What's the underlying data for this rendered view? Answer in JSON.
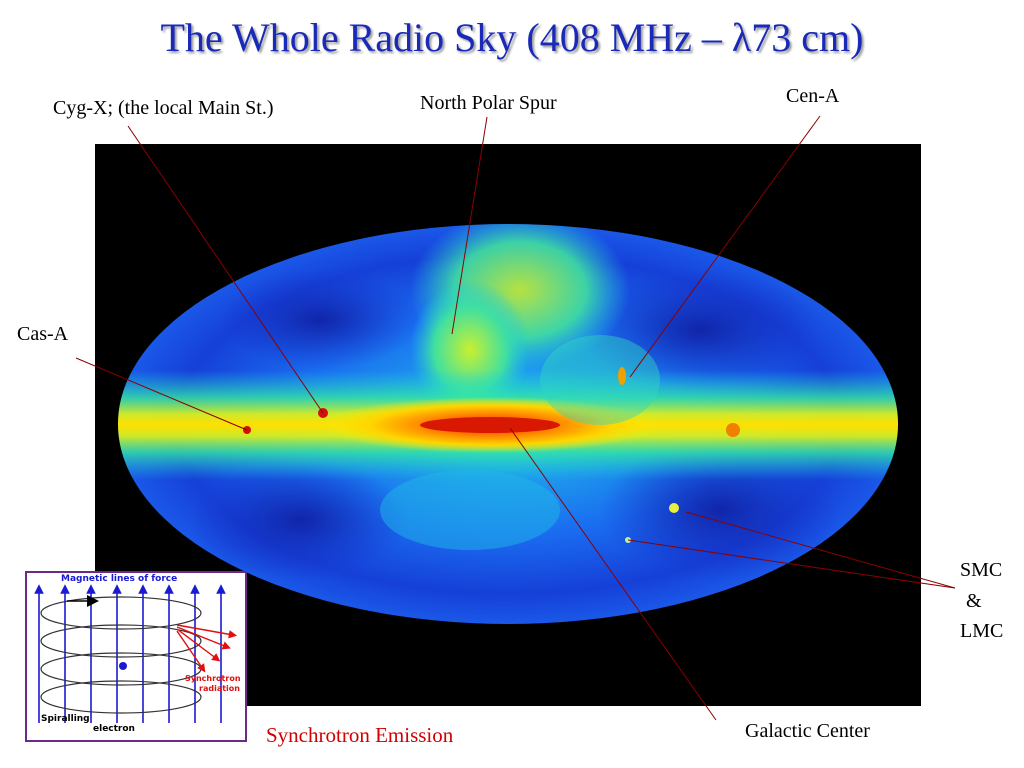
{
  "title": "The Whole Radio Sky (408 MHz – λ73 cm)",
  "labels": {
    "cyg_x": "Cyg-X; (the local Main St.)",
    "north_polar_spur": "North Polar Spur",
    "cen_a": "Cen-A",
    "cas_a": "Cas-A",
    "smc": "SMC",
    "amp": "&",
    "lmc": "LMC",
    "galactic_center": "Galactic Center",
    "synchrotron_emission": "Synchrotron Emission"
  },
  "inset": {
    "magnetic_lines": "Magnetic lines of force",
    "synchrotron_line1": "Synchrotron",
    "synchrotron_line2": "radiation",
    "spiralling": "Spiralling",
    "electron": "electron"
  },
  "colors": {
    "title": "#1a2ab8",
    "pointer_line": "#8b0000",
    "caption": "#d20000",
    "inset_border": "#6a2a8a"
  }
}
